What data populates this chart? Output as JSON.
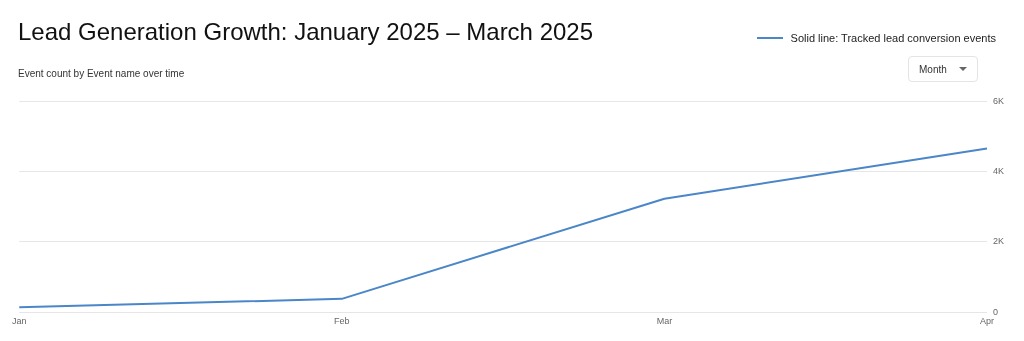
{
  "chart_data": {
    "type": "line",
    "title": "Lead Generation Growth: January 2025 – March 2025",
    "subtitle": "Event count by Event name over time",
    "annotations": [
      "Month"
    ],
    "categories": [
      "Jan",
      "Feb",
      "Mar",
      "Apr"
    ],
    "series": [
      {
        "name": "Solid line: Tracked lead conversion events",
        "color": "#4a86c8",
        "values": [
          140,
          380,
          3230,
          4660
        ]
      }
    ],
    "ylim": [
      0,
      6000
    ],
    "yticks": [
      0,
      {
        "value": 2000,
        "label": "2K"
      },
      {
        "value": 4000,
        "label": "4K"
      },
      {
        "value": 6000,
        "label": "6K"
      }
    ],
    "grid": "y",
    "legend": "top right",
    "marker": "none",
    "line_style": "solid"
  }
}
